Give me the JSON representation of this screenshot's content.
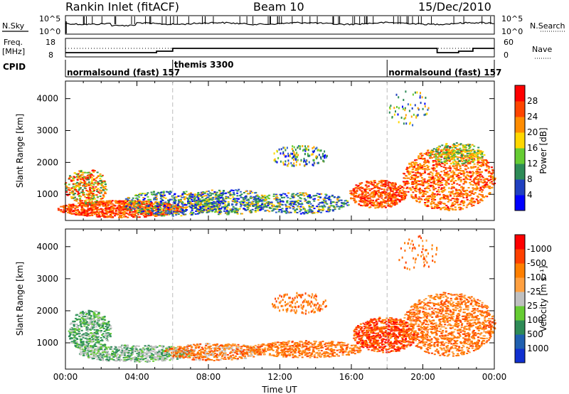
{
  "header": {
    "station": "Rankin Inlet (fitACF)",
    "beam": "Beam 10",
    "date": "15/Dec/2010"
  },
  "panel_labels": {
    "nsky": "N.Sky",
    "nsearch": "N.Search",
    "freq_line1": "Freq.",
    "freq_line2": "[MHz]",
    "nave": "Nave",
    "cpid": "CPID"
  },
  "small_axes": {
    "noise_left_ticks": [
      "10^5",
      "10^0"
    ],
    "noise_right_ticks": [
      "10^5",
      "10^0"
    ],
    "freq_left_ticks": [
      "18",
      "8"
    ],
    "freq_right_ticks": [
      "60",
      "0"
    ]
  },
  "cpid_segments": [
    {
      "label": "normalsound (fast) 157",
      "start_h": 0,
      "end_h": 6
    },
    {
      "label": "themis 3300",
      "start_h": 6,
      "end_h": 18
    },
    {
      "label": "normalsound (fast) 157",
      "start_h": 18,
      "end_h": 24
    }
  ],
  "chart_data": [
    {
      "type": "heatmap",
      "name": "power",
      "ylabel": "Slant Range [km]",
      "xlabel": "",
      "xlim_hours": [
        0,
        24
      ],
      "ylim_km": [
        180,
        4550
      ],
      "yticks": [
        1000,
        2000,
        3000,
        4000
      ],
      "colorbar": {
        "label": "Power [dB]",
        "ticks": [
          "4",
          "8",
          "12",
          "16",
          "20",
          "24",
          "28"
        ],
        "colors": [
          "#0000ff",
          "#2040c0",
          "#2e8b57",
          "#66cc33",
          "#ffd700",
          "#ff8c00",
          "#ff4500",
          "#ff0000"
        ]
      }
    },
    {
      "type": "heatmap",
      "name": "velocity",
      "ylabel": "Slant Range [km]",
      "xlabel": "Time UT",
      "xlim_hours": [
        0,
        24
      ],
      "ylim_km": [
        180,
        4550
      ],
      "yticks": [
        1000,
        2000,
        3000,
        4000
      ],
      "xticks": [
        "00:00",
        "04:00",
        "08:00",
        "12:00",
        "16:00",
        "20:00",
        "00:00"
      ],
      "colorbar": {
        "label": "Velocity [m s⁻¹]",
        "ticks": [
          "1000",
          "500",
          "100",
          "25",
          "-25",
          "-100",
          "-500",
          "-1000"
        ],
        "colors": [
          "#1030d0",
          "#2060b0",
          "#2e8b57",
          "#66cc33",
          "#c0c0c0",
          "#ffa040",
          "#ff7f00",
          "#ff4000",
          "#ff0000"
        ]
      }
    }
  ]
}
